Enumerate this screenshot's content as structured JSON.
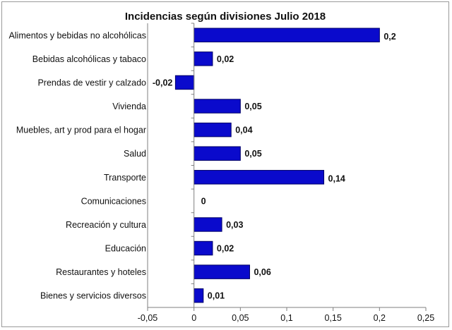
{
  "chart_data": {
    "type": "bar",
    "orientation": "horizontal",
    "title": "Incidencias  según divisiones Julio  2018",
    "categories": [
      "Alimentos y bebidas no alcohólicas",
      "Bebidas alcohólicas y tabaco",
      "Prendas de vestir y calzado",
      "Vivienda",
      "Muebles, art y prod para el hogar",
      "Salud",
      "Transporte",
      "Comunicaciones",
      "Recreación y cultura",
      "Educación",
      "Restaurantes y hoteles",
      "Bienes y servicios diversos"
    ],
    "values": [
      0.2,
      0.02,
      -0.02,
      0.05,
      0.04,
      0.05,
      0.14,
      0,
      0.03,
      0.02,
      0.06,
      0.01
    ],
    "value_labels": [
      "0,2",
      "0,02",
      "-0,02",
      "0,05",
      "0,04",
      "0,05",
      "0,14",
      "0",
      "0,03",
      "0,02",
      "0,06",
      "0,01"
    ],
    "xlim": [
      -0.05,
      0.25
    ],
    "xticks": [
      -0.05,
      0,
      0.05,
      0.1,
      0.15,
      0.2,
      0.25
    ],
    "xtick_labels": [
      "-0,05",
      "0",
      "0,05",
      "0,1",
      "0,15",
      "0,2",
      "0,25"
    ],
    "grid": false,
    "legend": "none",
    "bar_color": "#0a0acc",
    "bar_edge_color": "#000066"
  }
}
